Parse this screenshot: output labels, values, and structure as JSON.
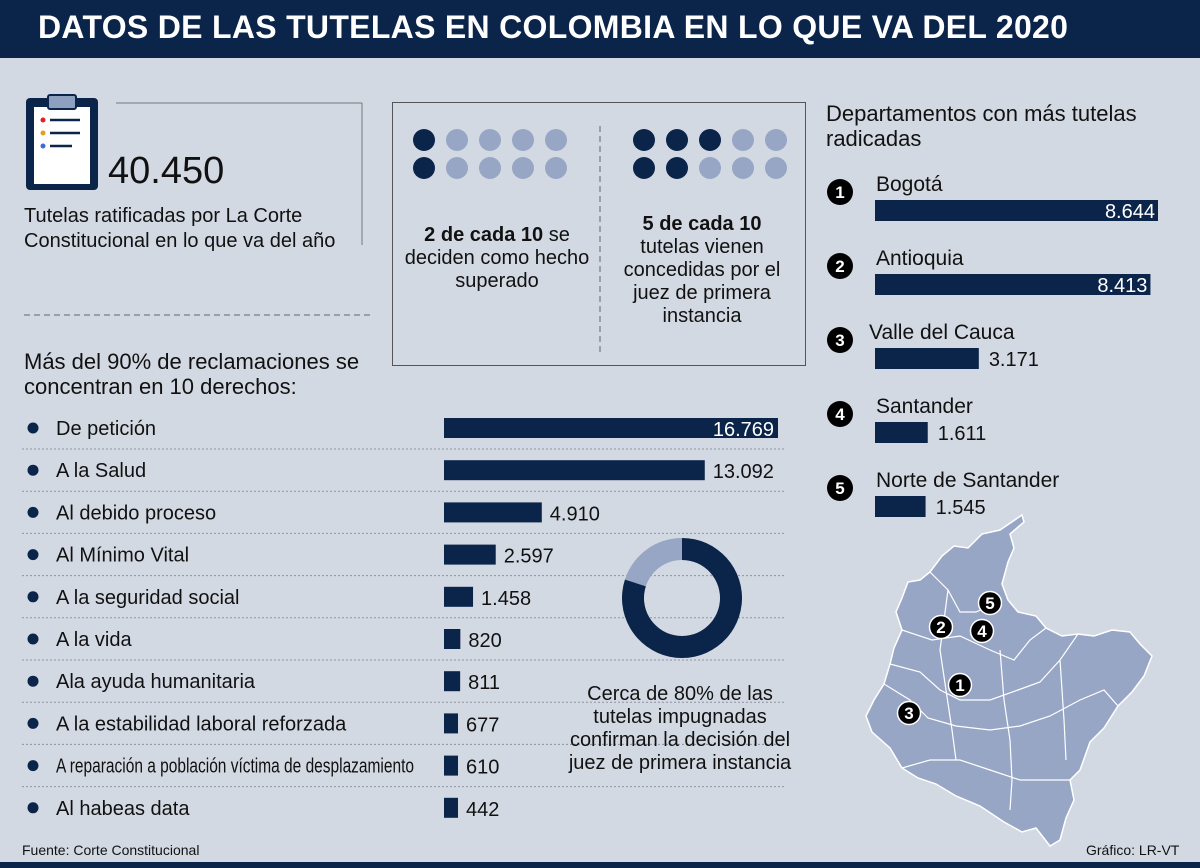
{
  "header": {
    "title": "DATOS DE LAS TUTELAS EN COLOMBIA EN LO QUE VA DEL 2020"
  },
  "ratified": {
    "value": "40.450",
    "caption": "Tutelas ratificadas por La Corte Constitucional en lo que va del año",
    "icon": "clipboard-icon"
  },
  "stats": [
    {
      "bold": "2 de cada 10",
      "text": " se deciden como hecho superado",
      "filled": 2,
      "total": 10
    },
    {
      "bold": "5 de cada 10",
      "text": " tutelas vienen concedidas por el juez de primera instancia",
      "filled": 5,
      "total": 10
    }
  ],
  "rights": {
    "heading": "Más del 90% de reclamaciones se concentran en 10 derechos:"
  },
  "departments": {
    "heading": "Departamentos con más tutelas radicadas"
  },
  "donut": {
    "caption": "Cerca de 80% de las tutelas impugnadas confirman la decisión del juez de primera instancia",
    "percent": 80
  },
  "chart_data": [
    {
      "type": "bar",
      "orientation": "horizontal",
      "title": "Más del 90% de reclamaciones se concentran en 10 derechos:",
      "categories": [
        "De petición",
        "A la Salud",
        "Al debido proceso",
        "Al Mínimo Vital",
        "A la seguridad social",
        "A la vida",
        "Ala ayuda humanitaria",
        "A la estabilidad laboral reforzada",
        "A reparación a población víctima de desplazamiento",
        "Al habeas data"
      ],
      "values": [
        16769,
        13092,
        4910,
        2597,
        1458,
        820,
        811,
        677,
        610,
        442
      ],
      "labels": [
        "16.769",
        "13.092",
        "4.910",
        "2.597",
        "1.458",
        "820",
        "811",
        "677",
        "610",
        "442"
      ]
    },
    {
      "type": "bar",
      "orientation": "horizontal",
      "title": "Departamentos con más tutelas radicadas",
      "categories": [
        "Bogotá",
        "Antioquia",
        "Valle del Cauca",
        "Santander",
        "Norte de Santander"
      ],
      "ranks": [
        "1",
        "2",
        "3",
        "4",
        "5"
      ],
      "values": [
        8644,
        8413,
        3171,
        1611,
        1545
      ],
      "labels": [
        "8.644",
        "8.413",
        "3.171",
        "1.611",
        "1.545"
      ]
    },
    {
      "type": "pie",
      "title": "",
      "values": [
        80,
        20
      ]
    }
  ],
  "map": {
    "icon": "colombia-map-icon",
    "markers": [
      "1",
      "2",
      "3",
      "4",
      "5"
    ]
  },
  "footer": {
    "source": "Fuente: Corte Constitucional",
    "credit": "Gráfico: LR-VT"
  },
  "colors": {
    "navy": "#0b2449",
    "light": "#97a6c5",
    "background": "#d3d9e3"
  }
}
